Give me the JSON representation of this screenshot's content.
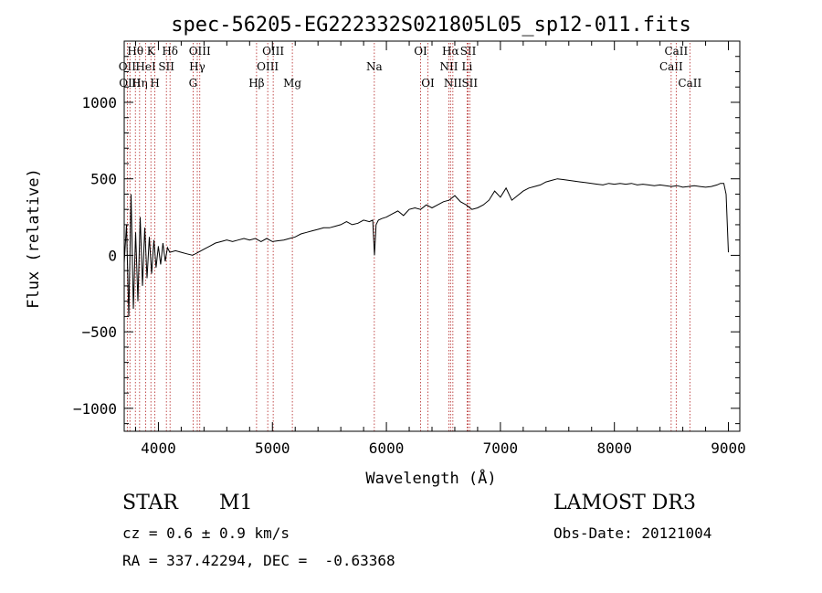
{
  "chart_data": {
    "type": "line",
    "title": "spec-56205-EG222332S021805L05_sp12-011.fits",
    "xlabel": "Wavelength (Å)",
    "ylabel": "Flux (relative)",
    "xlim": [
      3700,
      9100
    ],
    "ylim": [
      -1150,
      1400
    ],
    "xticks": [
      4000,
      5000,
      6000,
      7000,
      8000,
      9000
    ],
    "yticks": [
      -1000,
      -500,
      0,
      500,
      1000
    ],
    "xtick_labels": [
      "4000",
      "5000",
      "6000",
      "7000",
      "8000",
      "9000"
    ],
    "ytick_labels": [
      "−1000",
      "−500",
      "0",
      "500",
      "1000"
    ],
    "series": [
      {
        "color": "#000000",
        "x": [
          3700,
          3720,
          3740,
          3760,
          3780,
          3800,
          3820,
          3840,
          3860,
          3880,
          3900,
          3920,
          3940,
          3960,
          3980,
          4000,
          4020,
          4040,
          4060,
          4080,
          4100,
          4150,
          4200,
          4250,
          4300,
          4350,
          4400,
          4450,
          4500,
          4550,
          4600,
          4650,
          4700,
          4750,
          4800,
          4850,
          4900,
          4950,
          5000,
          5050,
          5100,
          5150,
          5200,
          5250,
          5300,
          5350,
          5400,
          5450,
          5500,
          5550,
          5600,
          5650,
          5700,
          5750,
          5800,
          5850,
          5880,
          5895,
          5910,
          5930,
          5960,
          6000,
          6050,
          6100,
          6150,
          6200,
          6250,
          6300,
          6350,
          6400,
          6450,
          6500,
          6550,
          6600,
          6650,
          6700,
          6750,
          6800,
          6850,
          6900,
          6950,
          7000,
          7050,
          7100,
          7150,
          7200,
          7250,
          7300,
          7350,
          7400,
          7450,
          7500,
          7550,
          7600,
          7650,
          7700,
          7750,
          7800,
          7850,
          7900,
          7950,
          8000,
          8050,
          8100,
          8150,
          8200,
          8250,
          8300,
          8350,
          8400,
          8450,
          8500,
          8550,
          8600,
          8650,
          8700,
          8750,
          8800,
          8850,
          8900,
          8930,
          8960,
          8980,
          9000
        ],
        "y": [
          -50,
          200,
          -400,
          400,
          -350,
          150,
          -300,
          250,
          -200,
          180,
          -150,
          120,
          -120,
          100,
          -80,
          60,
          -60,
          80,
          -40,
          50,
          20,
          30,
          20,
          10,
          0,
          20,
          40,
          60,
          80,
          90,
          100,
          90,
          100,
          110,
          100,
          110,
          90,
          110,
          90,
          95,
          100,
          110,
          120,
          140,
          150,
          160,
          170,
          180,
          180,
          190,
          200,
          220,
          200,
          210,
          230,
          220,
          230,
          0,
          200,
          230,
          240,
          250,
          270,
          290,
          260,
          300,
          310,
          300,
          330,
          310,
          330,
          350,
          360,
          390,
          350,
          330,
          300,
          310,
          330,
          360,
          420,
          380,
          440,
          360,
          390,
          420,
          440,
          450,
          460,
          480,
          490,
          500,
          495,
          490,
          485,
          480,
          475,
          470,
          465,
          460,
          470,
          465,
          470,
          465,
          470,
          460,
          465,
          460,
          455,
          460,
          455,
          450,
          455,
          445,
          450,
          455,
          450,
          445,
          450,
          460,
          470,
          470,
          400,
          20
        ]
      }
    ],
    "line_marks": [
      {
        "x": 3727,
        "label": "OII",
        "row": 2
      },
      {
        "x": 3750,
        "label": "OIII",
        "row": 3
      },
      {
        "x": 3798,
        "label": "Hθ",
        "row": 1
      },
      {
        "x": 3835,
        "label": "Hη",
        "row": 3
      },
      {
        "x": 3889,
        "label": "HeI",
        "row": 2
      },
      {
        "x": 3934,
        "label": "K",
        "row": 1
      },
      {
        "x": 3969,
        "label": "H",
        "row": 3
      },
      {
        "x": 4070,
        "label": "SII",
        "row": 2
      },
      {
        "x": 4102,
        "label": "Hδ",
        "row": 1
      },
      {
        "x": 4304,
        "label": "G",
        "row": 3
      },
      {
        "x": 4341,
        "label": "Hγ",
        "row": 2
      },
      {
        "x": 4363,
        "label": "OIII",
        "row": 1
      },
      {
        "x": 4861,
        "label": "Hβ",
        "row": 3
      },
      {
        "x": 4959,
        "label": "OIII",
        "row": 2
      },
      {
        "x": 5007,
        "label": "OIII",
        "row": 1
      },
      {
        "x": 5175,
        "label": "Mg",
        "row": 3
      },
      {
        "x": 5894,
        "label": "Na",
        "row": 2
      },
      {
        "x": 6300,
        "label": "OI",
        "row": 1
      },
      {
        "x": 6364,
        "label": "OI",
        "row": 3
      },
      {
        "x": 6548,
        "label": "NII",
        "row": 2
      },
      {
        "x": 6563,
        "label": "Hα",
        "row": 1
      },
      {
        "x": 6583,
        "label": "NII",
        "row": 3
      },
      {
        "x": 6708,
        "label": "Li",
        "row": 2
      },
      {
        "x": 6717,
        "label": "SII",
        "row": 1
      },
      {
        "x": 6731,
        "label": "SII",
        "row": 3
      },
      {
        "x": 8498,
        "label": "CaII",
        "row": 2
      },
      {
        "x": 8542,
        "label": "CaII",
        "row": 1
      },
      {
        "x": 8662,
        "label": "CaII",
        "row": 3
      }
    ]
  },
  "info": {
    "object_class": "STAR",
    "subclass": "M1",
    "survey": "LAMOST DR3",
    "cz": "cz = 0.6 ± 0.9 km/s",
    "obs_date": "Obs-Date: 20121004",
    "radec": "RA = 337.42294, DEC =  -0.63368"
  }
}
